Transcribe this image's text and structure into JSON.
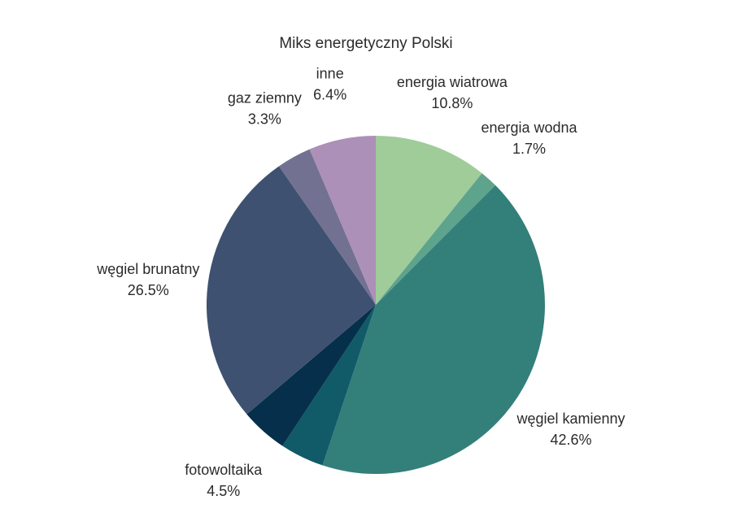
{
  "chart_data": {
    "type": "pie",
    "title": "Miks energetyczny Polski",
    "slices": [
      {
        "label": "energia wiatrowa",
        "value": 10.8,
        "display": "10.8%",
        "color": "#a0cc9a"
      },
      {
        "label": "energia wodna",
        "value": 1.7,
        "display": "1.7%",
        "color": "#5ea38c"
      },
      {
        "label": "węgiel kamienny",
        "value": 42.6,
        "display": "42.6%",
        "color": "#337f79"
      },
      {
        "label": "",
        "value": 4.2,
        "display": "",
        "color": "#115a67"
      },
      {
        "label": "fotowoltaika",
        "value": 4.5,
        "display": "4.5%",
        "color": "#052f4a"
      },
      {
        "label": "węgiel brunatny",
        "value": 26.5,
        "display": "26.5%",
        "color": "#3e5170"
      },
      {
        "label": "gaz ziemny",
        "value": 3.3,
        "display": "3.3%",
        "color": "#737192"
      },
      {
        "label": "inne",
        "value": 6.4,
        "display": "6.4%",
        "color": "#ac90b8"
      }
    ]
  }
}
